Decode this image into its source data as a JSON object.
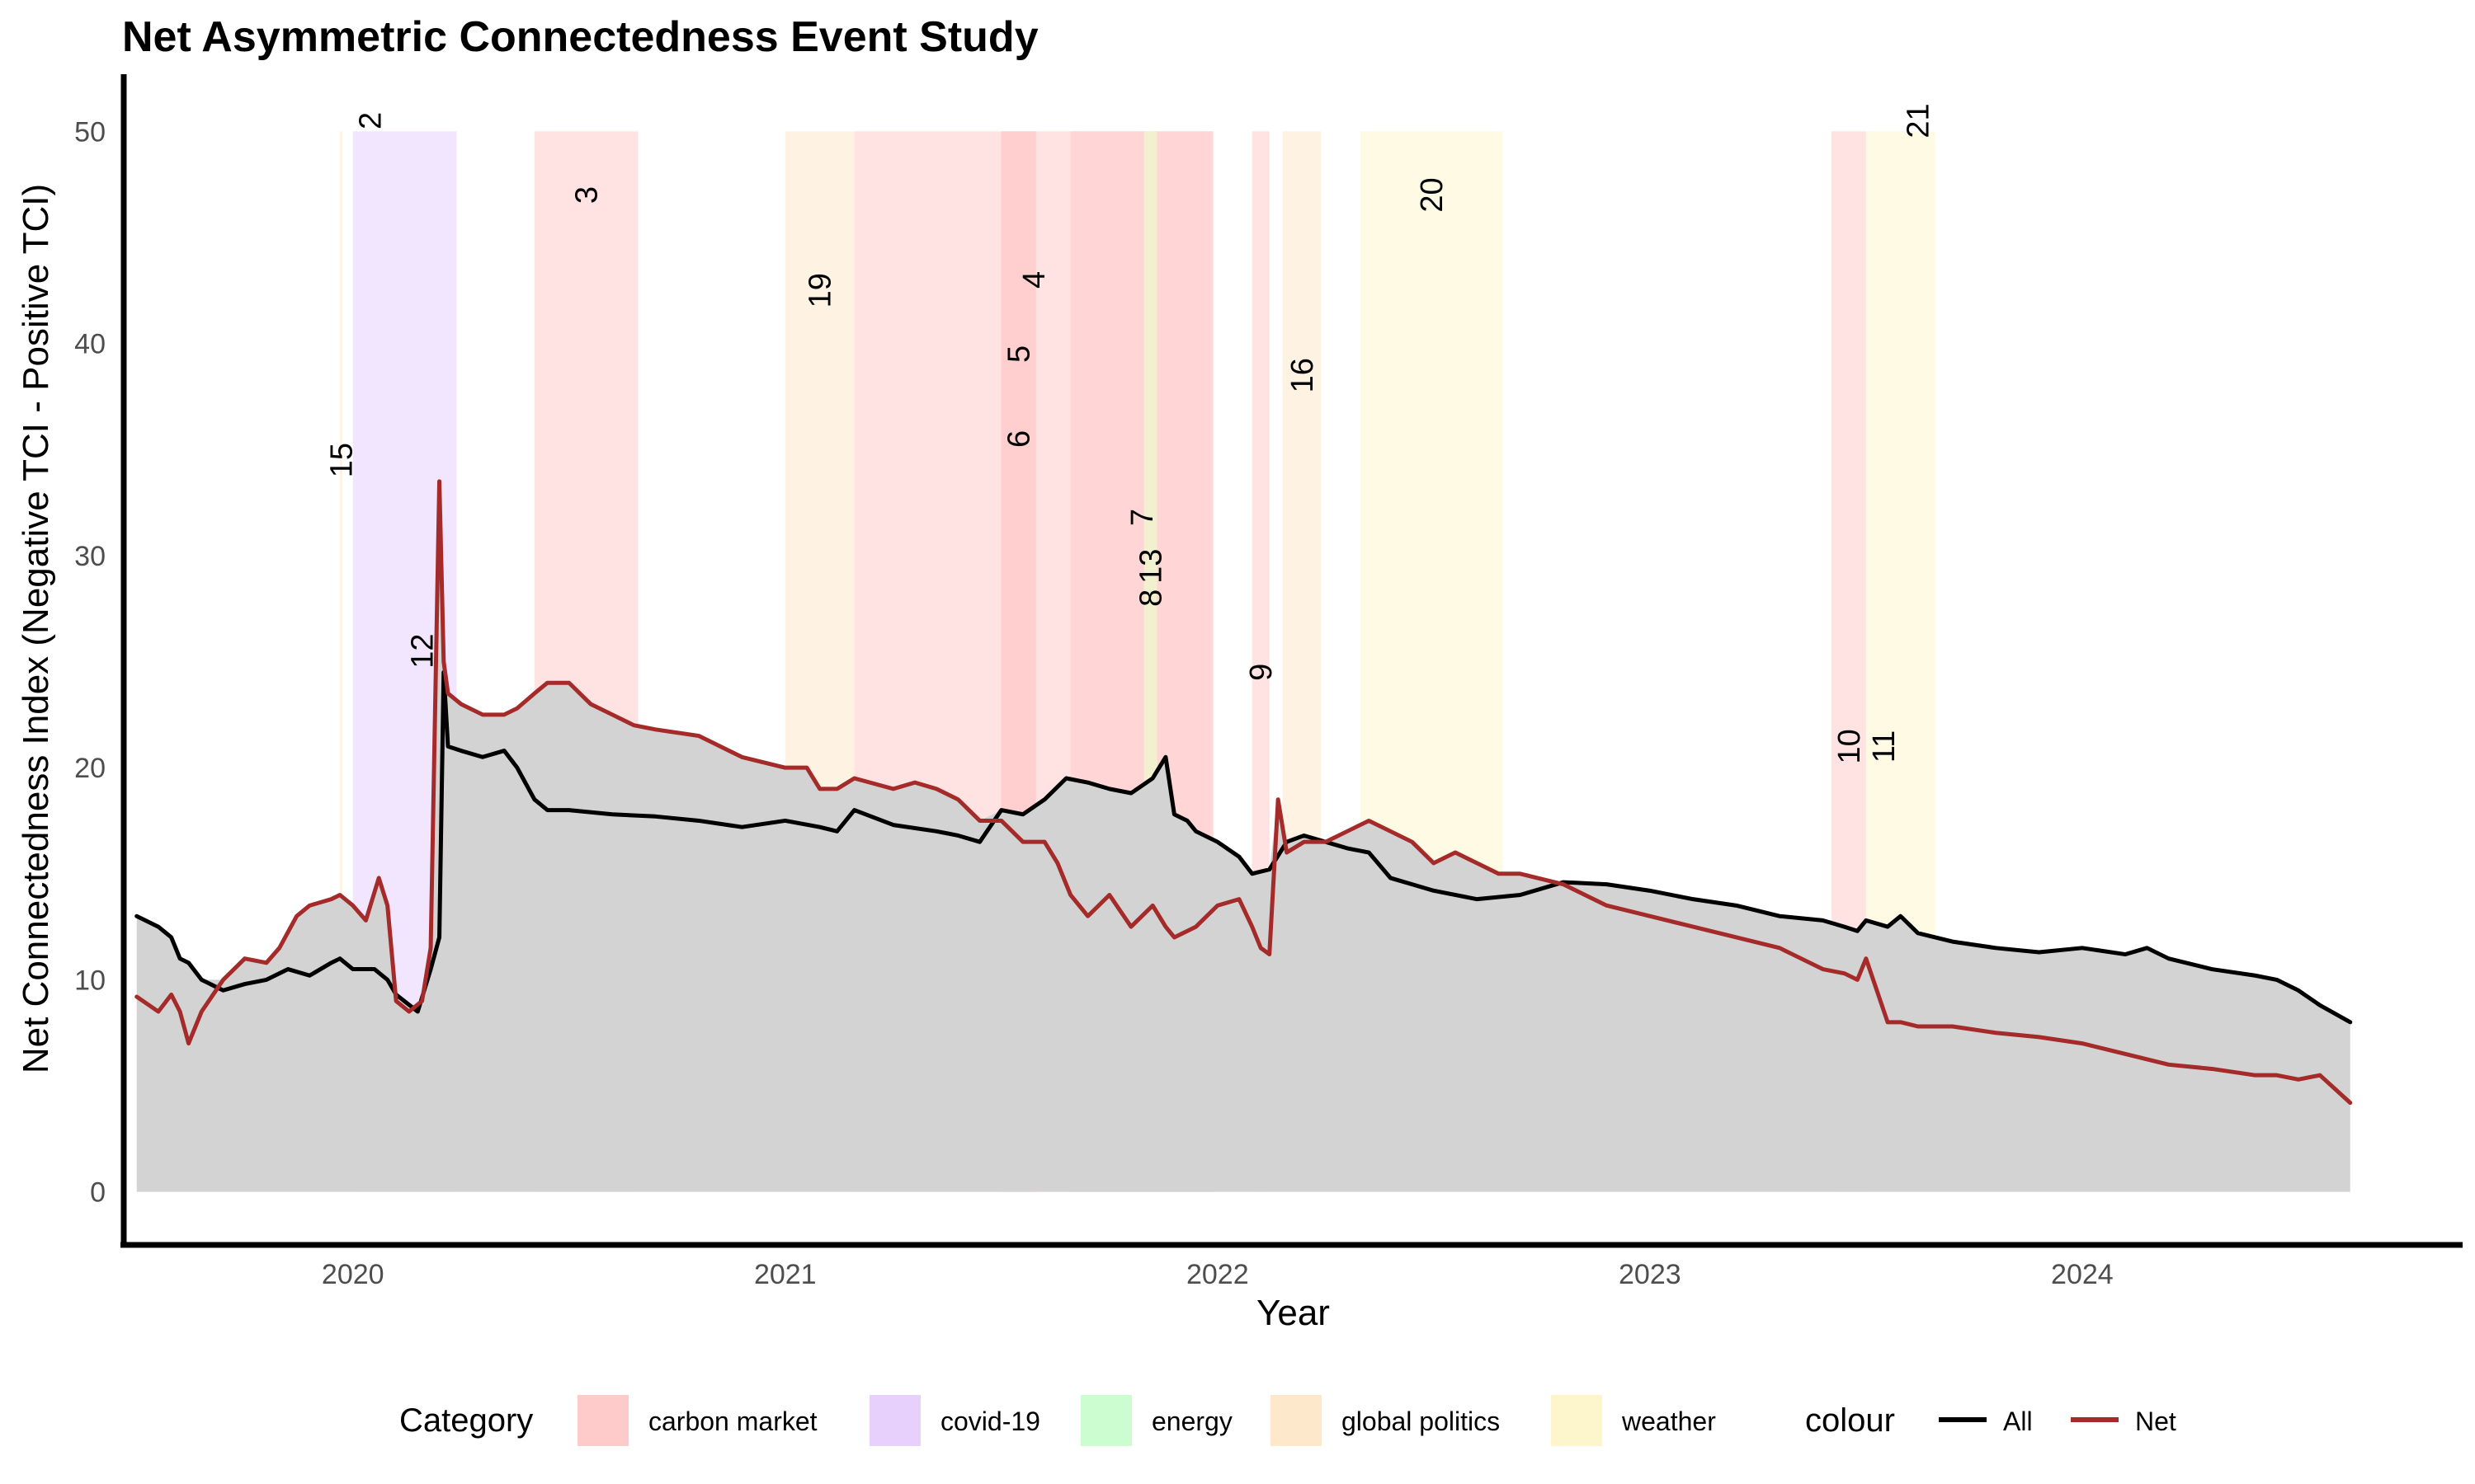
{
  "chart_data": {
    "type": "area",
    "title": "Net Asymmetric Connectedness Event Study",
    "xlabel": "Year",
    "ylabel": "Net Connectedness Index (Negative TCI - Positive TCI)",
    "xlim": [
      2019.47,
      2024.88
    ],
    "ylim": [
      -2.5,
      52.5
    ],
    "x_ticks": [
      2020,
      2021,
      2022,
      2023,
      2024
    ],
    "x_tick_labels": [
      "2020",
      "2021",
      "2022",
      "2023",
      "2024"
    ],
    "y_ticks": [
      0,
      10,
      20,
      30,
      40,
      50
    ],
    "y_tick_labels": [
      "0",
      "10",
      "20",
      "30",
      "40",
      "50"
    ],
    "grid": false,
    "legend_position": "bottom",
    "category_legend": {
      "title": "Category",
      "items": [
        {
          "label": "carbon market",
          "color": "#ffcaca"
        },
        {
          "label": "covid-19",
          "color": "#e8d0fd"
        },
        {
          "label": "energy",
          "color": "#ccfdd0"
        },
        {
          "label": "global politics",
          "color": "#fde8cc"
        },
        {
          "label": "weather",
          "color": "#fdf5cc"
        }
      ]
    },
    "colour_legend": {
      "title": "colour",
      "items": [
        {
          "label": "All",
          "color": "#000000"
        },
        {
          "label": "Net",
          "color": "#a52a2a"
        }
      ]
    },
    "events": [
      {
        "label": "15",
        "start": 2019.97,
        "end": 2019.975,
        "category": "global politics",
        "label_y": 34.5
      },
      {
        "label": "2",
        "start": 2020.0,
        "end": 2020.08,
        "category": "covid-19",
        "label_y": 50.5
      },
      {
        "label": "12",
        "start": 2020.08,
        "end": 2020.24,
        "category": "covid-19",
        "label_y": 25.5
      },
      {
        "label": "3",
        "start": 2020.42,
        "end": 2020.66,
        "category": "carbon market",
        "label_y": 47.0
      },
      {
        "label": "19",
        "start": 2021.0,
        "end": 2021.16,
        "category": "global politics",
        "label_y": 42.5
      },
      {
        "label": "4",
        "start": 2021.16,
        "end": 2021.99,
        "category": "carbon market",
        "label_y": 43.0
      },
      {
        "label": "5",
        "start": 2021.5,
        "end": 2021.58,
        "category": "carbon market",
        "label_y": 39.5
      },
      {
        "label": "6",
        "start": 2021.5,
        "end": 2021.58,
        "category": "carbon market",
        "label_y": 35.5
      },
      {
        "label": "7",
        "start": 2021.66,
        "end": 2021.99,
        "category": "carbon market",
        "label_y": 31.8
      },
      {
        "label": "13",
        "start": 2021.83,
        "end": 2021.86,
        "category": "energy",
        "label_y": 29.5
      },
      {
        "label": "8",
        "start": 2021.83,
        "end": 2021.86,
        "category": "weather",
        "label_y": 28.0
      },
      {
        "label": "9",
        "start": 2022.08,
        "end": 2022.12,
        "category": "carbon market",
        "label_y": 24.5
      },
      {
        "label": "16",
        "start": 2022.15,
        "end": 2022.24,
        "category": "global politics",
        "label_y": 38.5
      },
      {
        "label": "20",
        "start": 2022.33,
        "end": 2022.66,
        "category": "weather",
        "label_y": 47.0
      },
      {
        "label": "10",
        "start": 2023.42,
        "end": 2023.5,
        "category": "carbon market",
        "label_y": 21.0
      },
      {
        "label": "11",
        "start": 2023.5,
        "end": 2023.58,
        "category": "weather",
        "label_y": 21.0
      },
      {
        "label": "21",
        "start": 2023.58,
        "end": 2023.66,
        "category": "weather",
        "label_y": 50.5
      }
    ],
    "series": [
      {
        "name": "All",
        "color": "#000000",
        "x": [
          2019.5,
          2019.55,
          2019.58,
          2019.6,
          2019.62,
          2019.65,
          2019.7,
          2019.75,
          2019.8,
          2019.85,
          2019.9,
          2019.95,
          2019.97,
          2020.0,
          2020.05,
          2020.08,
          2020.1,
          2020.15,
          2020.18,
          2020.2,
          2020.21,
          2020.22,
          2020.25,
          2020.3,
          2020.35,
          2020.38,
          2020.42,
          2020.45,
          2020.5,
          2020.6,
          2020.7,
          2020.8,
          2020.9,
          2021.0,
          2021.08,
          2021.12,
          2021.16,
          2021.25,
          2021.35,
          2021.4,
          2021.45,
          2021.5,
          2021.55,
          2021.6,
          2021.65,
          2021.7,
          2021.75,
          2021.8,
          2021.85,
          2021.88,
          2021.9,
          2021.93,
          2021.95,
          2022.0,
          2022.05,
          2022.08,
          2022.12,
          2022.16,
          2022.2,
          2022.25,
          2022.3,
          2022.35,
          2022.4,
          2022.45,
          2022.5,
          2022.6,
          2022.7,
          2022.8,
          2022.9,
          2023.0,
          2023.1,
          2023.2,
          2023.3,
          2023.4,
          2023.45,
          2023.48,
          2023.5,
          2023.55,
          2023.58,
          2023.62,
          2023.7,
          2023.8,
          2023.9,
          2024.0,
          2024.1,
          2024.15,
          2024.2,
          2024.3,
          2024.4,
          2024.45,
          2024.5,
          2024.55,
          2024.62
        ],
        "y": [
          13.0,
          12.5,
          12.0,
          11.0,
          10.8,
          10.0,
          9.5,
          9.8,
          10.0,
          10.5,
          10.2,
          10.8,
          11.0,
          10.5,
          10.5,
          10.0,
          9.3,
          8.5,
          10.5,
          12.0,
          24.5,
          21.0,
          20.8,
          20.5,
          20.8,
          20.0,
          18.5,
          18.0,
          18.0,
          17.8,
          17.7,
          17.5,
          17.2,
          17.5,
          17.2,
          17.0,
          18.0,
          17.3,
          17.0,
          16.8,
          16.5,
          18.0,
          17.8,
          18.5,
          19.5,
          19.3,
          19.0,
          18.8,
          19.5,
          20.5,
          17.8,
          17.5,
          17.0,
          16.5,
          15.8,
          15.0,
          15.2,
          16.5,
          16.8,
          16.5,
          16.2,
          16.0,
          14.8,
          14.5,
          14.2,
          13.8,
          14.0,
          14.6,
          14.5,
          14.2,
          13.8,
          13.5,
          13.0,
          12.8,
          12.5,
          12.3,
          12.8,
          12.5,
          13.0,
          12.2,
          11.8,
          11.5,
          11.3,
          11.5,
          11.2,
          11.5,
          11.0,
          10.5,
          10.2,
          10.0,
          9.5,
          8.8,
          8.0
        ]
      },
      {
        "name": "Net",
        "color": "#a52a2a",
        "x": [
          2019.5,
          2019.55,
          2019.58,
          2019.6,
          2019.62,
          2019.65,
          2019.7,
          2019.75,
          2019.8,
          2019.83,
          2019.87,
          2019.9,
          2019.95,
          2019.97,
          2020.0,
          2020.03,
          2020.06,
          2020.08,
          2020.1,
          2020.13,
          2020.16,
          2020.18,
          2020.2,
          2020.21,
          2020.22,
          2020.25,
          2020.3,
          2020.35,
          2020.38,
          2020.42,
          2020.45,
          2020.5,
          2020.55,
          2020.6,
          2020.65,
          2020.7,
          2020.8,
          2020.9,
          2021.0,
          2021.05,
          2021.08,
          2021.12,
          2021.16,
          2021.25,
          2021.3,
          2021.35,
          2021.4,
          2021.45,
          2021.5,
          2021.55,
          2021.6,
          2021.63,
          2021.66,
          2021.7,
          2021.75,
          2021.8,
          2021.85,
          2021.88,
          2021.9,
          2021.95,
          2022.0,
          2022.05,
          2022.08,
          2022.1,
          2022.12,
          2022.14,
          2022.16,
          2022.2,
          2022.25,
          2022.3,
          2022.35,
          2022.4,
          2022.45,
          2022.5,
          2022.55,
          2022.6,
          2022.65,
          2022.7,
          2022.8,
          2022.9,
          2023.0,
          2023.1,
          2023.2,
          2023.3,
          2023.35,
          2023.4,
          2023.45,
          2023.48,
          2023.5,
          2023.55,
          2023.58,
          2023.62,
          2023.7,
          2023.8,
          2023.9,
          2024.0,
          2024.1,
          2024.2,
          2024.3,
          2024.4,
          2024.45,
          2024.5,
          2024.55,
          2024.62
        ],
        "y": [
          9.2,
          8.5,
          9.3,
          8.5,
          7.0,
          8.5,
          10.0,
          11.0,
          10.8,
          11.5,
          13.0,
          13.5,
          13.8,
          14.0,
          13.5,
          12.8,
          14.8,
          13.5,
          9.0,
          8.5,
          9.0,
          11.5,
          33.5,
          25.0,
          23.5,
          23.0,
          22.5,
          22.5,
          22.8,
          23.5,
          24.0,
          24.0,
          23.0,
          22.5,
          22.0,
          21.8,
          21.5,
          20.5,
          20.0,
          20.0,
          19.0,
          19.0,
          19.5,
          19.0,
          19.3,
          19.0,
          18.5,
          17.5,
          17.5,
          16.5,
          16.5,
          15.5,
          14.0,
          13.0,
          14.0,
          12.5,
          13.5,
          12.5,
          12.0,
          12.5,
          13.5,
          13.8,
          12.5,
          11.5,
          11.2,
          18.5,
          16.0,
          16.5,
          16.5,
          17.0,
          17.5,
          17.0,
          16.5,
          15.5,
          16.0,
          15.5,
          15.0,
          15.0,
          14.5,
          13.5,
          13.0,
          12.5,
          12.0,
          11.5,
          11.0,
          10.5,
          10.3,
          10.0,
          11.0,
          8.0,
          8.0,
          7.8,
          7.8,
          7.5,
          7.3,
          7.0,
          6.5,
          6.0,
          5.8,
          5.5,
          5.5,
          5.3,
          5.5,
          4.2
        ]
      }
    ]
  }
}
